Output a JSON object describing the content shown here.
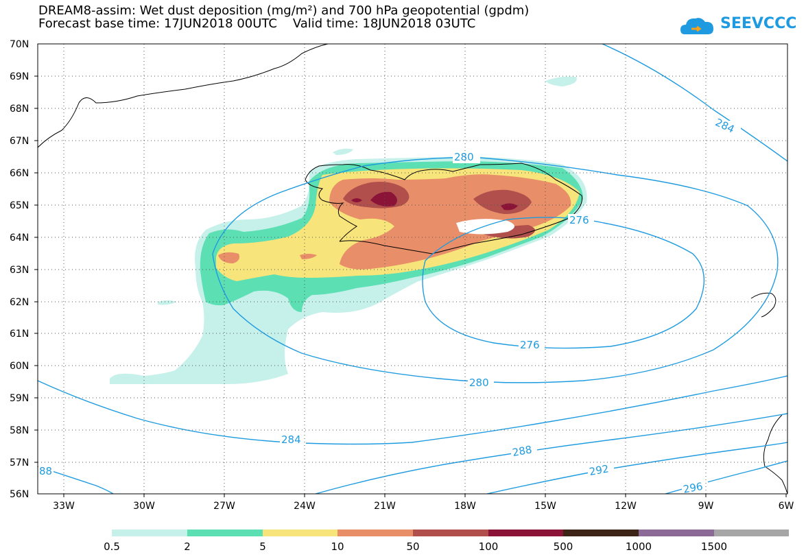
{
  "title": {
    "line1": "DREAM8-assim: Wet dust deposition (mg/m²) and 700 hPa geopotential (gpdm)",
    "line2": "Forecast base time: 17JUN2018 00UTC    Valid time: 18JUN2018 03UTC"
  },
  "logo": {
    "text": "SEEVCCC",
    "icon": "cloud-icon",
    "color": "#1e9be0"
  },
  "map": {
    "lat_labels": [
      "70N",
      "69N",
      "68N",
      "67N",
      "66N",
      "65N",
      "64N",
      "63N",
      "62N",
      "61N",
      "60N",
      "59N",
      "58N",
      "57N",
      "56N"
    ],
    "lon_labels": [
      "33W",
      "30W",
      "27W",
      "24W",
      "21W",
      "18W",
      "15W",
      "12W",
      "9W",
      "6W"
    ],
    "contour_color": "#1e9be0",
    "contour_labels": [
      "284",
      "280",
      "276",
      "276",
      "280",
      "284",
      "288",
      "292",
      "296",
      "88"
    ]
  },
  "colorbar": {
    "labels": [
      "0.5",
      "2",
      "5",
      "10",
      "50",
      "100",
      "500",
      "1000",
      "1500"
    ],
    "colors": [
      "#c6f0ea",
      "#5ddfb4",
      "#f7e47a",
      "#e88e68",
      "#b04f4b",
      "#8c1338",
      "#3e2317",
      "#8c6a98",
      "#a6a6a6"
    ]
  }
}
